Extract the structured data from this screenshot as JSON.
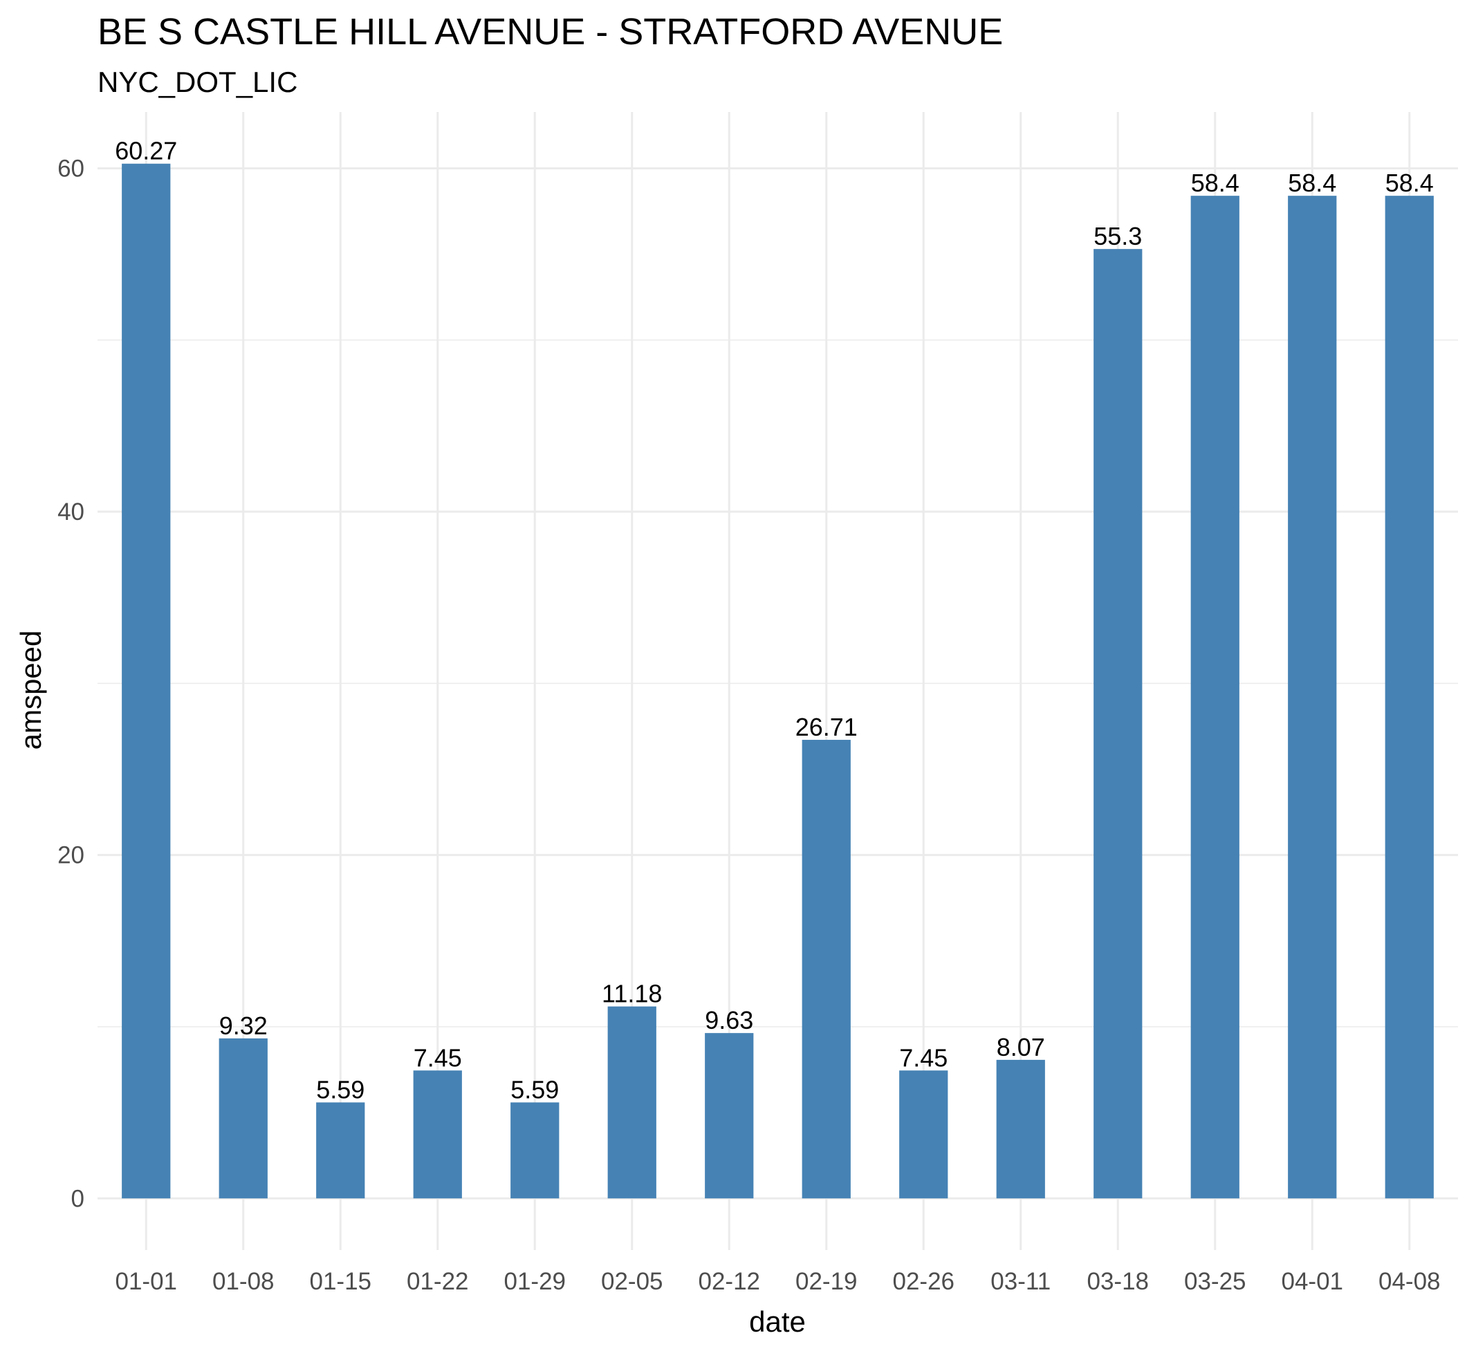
{
  "chart_data": {
    "type": "bar",
    "title": "BE S CASTLE HILL AVENUE - STRATFORD AVENUE",
    "subtitle": "NYC_DOT_LIC",
    "xlabel": "date",
    "ylabel": "amspeed",
    "categories": [
      "01-01",
      "01-08",
      "01-15",
      "01-22",
      "01-29",
      "02-05",
      "02-12",
      "02-19",
      "02-26",
      "03-11",
      "03-18",
      "03-25",
      "04-01",
      "04-08"
    ],
    "values": [
      60.27,
      9.32,
      5.59,
      7.45,
      5.59,
      11.18,
      9.63,
      26.71,
      7.45,
      8.07,
      55.3,
      58.4,
      58.4,
      58.4
    ],
    "value_labels": [
      "60.27",
      "9.32",
      "5.59",
      "7.45",
      "5.59",
      "11.18",
      "9.63",
      "26.71",
      "7.45",
      "8.07",
      "55.3",
      "58.4",
      "58.4",
      "58.4"
    ],
    "ylim": [
      -3.01,
      63.28
    ],
    "yticks": [
      0,
      20,
      40,
      60
    ],
    "ytick_labels": [
      "0",
      "20",
      "40",
      "60"
    ],
    "grid": true,
    "bar_color": "#4682B4"
  }
}
